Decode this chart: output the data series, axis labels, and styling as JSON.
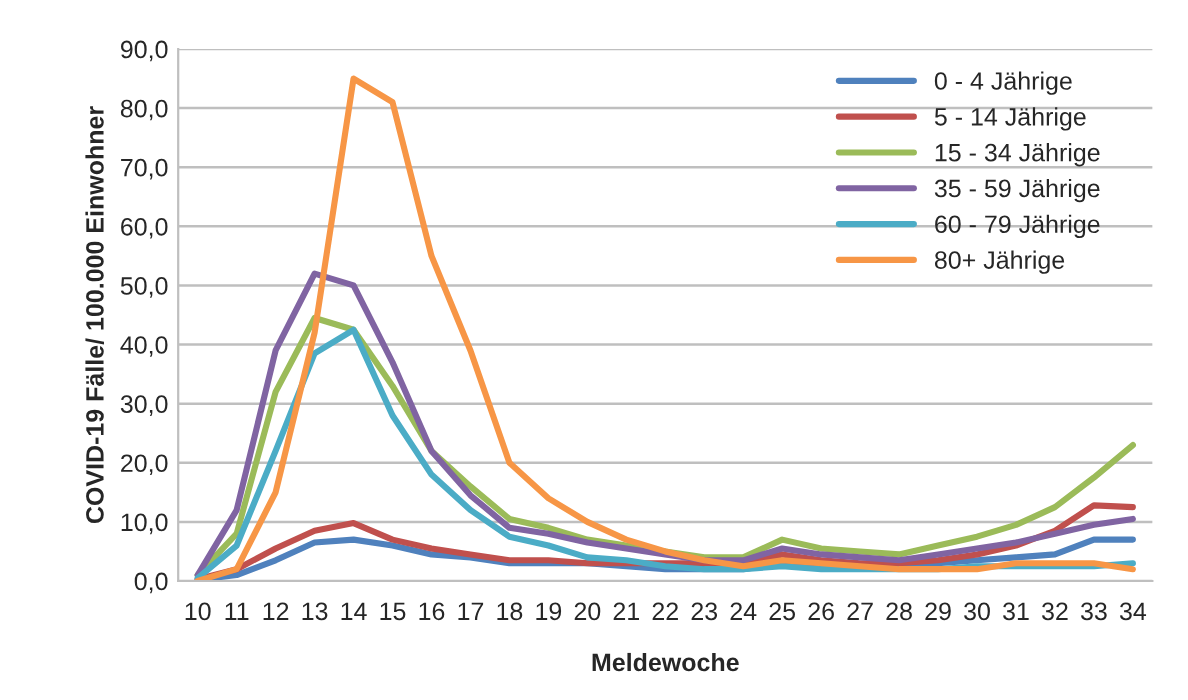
{
  "chart_data": {
    "type": "line",
    "xlabel": "Meldewoche",
    "ylabel": "COVID-19 Fälle/ 100.000 Einwohner",
    "categories": [
      "10",
      "11",
      "12",
      "13",
      "14",
      "15",
      "16",
      "17",
      "18",
      "19",
      "20",
      "21",
      "22",
      "23",
      "24",
      "25",
      "26",
      "27",
      "28",
      "29",
      "30",
      "31",
      "32",
      "33",
      "34"
    ],
    "series": [
      {
        "name": "0 - 4 Jährige",
        "color": "#4f81bd",
        "values": [
          0.2,
          1,
          3.5,
          6.5,
          7,
          6,
          4.5,
          4,
          3,
          3,
          3,
          2.5,
          2,
          2,
          2,
          3,
          2.5,
          2.5,
          2.5,
          3,
          3.5,
          4,
          4.5,
          7,
          7
        ]
      },
      {
        "name": "5 - 14 Jährige",
        "color": "#c0504d",
        "values": [
          0.3,
          2,
          5.5,
          8.5,
          9.8,
          7,
          5.5,
          4.5,
          3.5,
          3.5,
          3,
          3,
          3,
          3,
          3,
          4.5,
          3.5,
          3,
          3,
          3.5,
          4.5,
          6,
          8.5,
          12.8,
          12.5
        ]
      },
      {
        "name": "15 - 34 Jährige",
        "color": "#9bbb59",
        "values": [
          1,
          8,
          32,
          44.5,
          42.5,
          33,
          22,
          16,
          10.5,
          9,
          7,
          6,
          5,
          4,
          4,
          7,
          5.5,
          5,
          4.5,
          6,
          7.5,
          9.5,
          12.5,
          17.5,
          23
        ]
      },
      {
        "name": "35 - 59 Jährige",
        "color": "#8064a2",
        "values": [
          1,
          12,
          39,
          52,
          50,
          37,
          22,
          14.5,
          9,
          8,
          6.5,
          5.5,
          4.5,
          3.5,
          3.5,
          5.5,
          4.5,
          4,
          3.5,
          4.5,
          5.5,
          6.5,
          8,
          9.5,
          10.5
        ]
      },
      {
        "name": "60 - 79 Jährige",
        "color": "#4bacc6",
        "values": [
          0.5,
          6,
          22,
          38.5,
          42.5,
          28,
          18,
          12,
          7.5,
          6,
          4,
          3.5,
          2.5,
          2,
          2,
          2.5,
          2,
          2,
          2,
          2,
          2.5,
          2.5,
          2.5,
          2.5,
          3
        ]
      },
      {
        "name": "80+ Jährige",
        "color": "#f79646",
        "values": [
          0,
          2,
          15,
          42,
          85,
          81,
          55,
          39,
          20,
          14,
          10,
          7,
          5,
          3.5,
          2.5,
          3.5,
          3,
          2.5,
          2,
          2,
          2,
          3,
          3,
          3,
          2
        ]
      }
    ],
    "ylim": [
      0,
      90
    ],
    "yticks": [
      {
        "value": 0,
        "label": "0,0"
      },
      {
        "value": 10,
        "label": "10,0"
      },
      {
        "value": 20,
        "label": "20,0"
      },
      {
        "value": 30,
        "label": "30,0"
      },
      {
        "value": 40,
        "label": "40,0"
      },
      {
        "value": 50,
        "label": "50,0"
      },
      {
        "value": 60,
        "label": "60,0"
      },
      {
        "value": 70,
        "label": "70,0"
      },
      {
        "value": 80,
        "label": "80,0"
      },
      {
        "value": 90,
        "label": "90,0"
      }
    ],
    "grid": "y",
    "legend": "top right",
    "marker": "none",
    "line_style": "solid"
  }
}
